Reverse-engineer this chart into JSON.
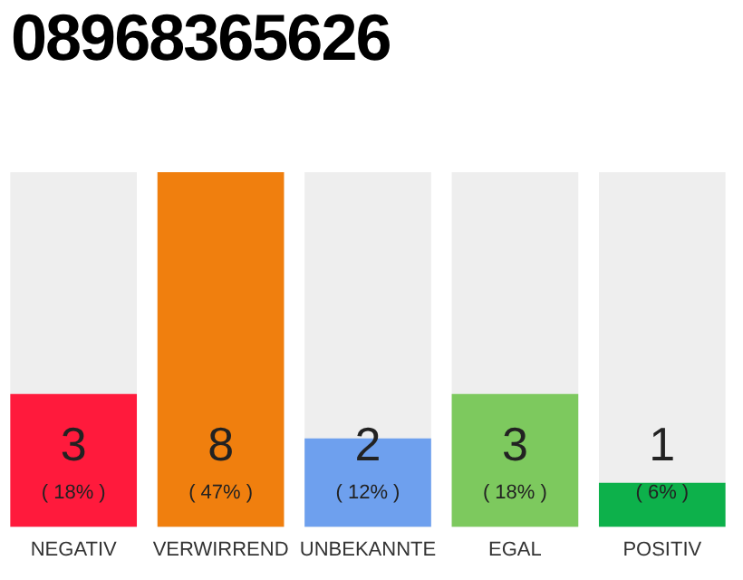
{
  "chart_data": {
    "type": "bar",
    "title": "08968365626",
    "categories": [
      "NEGATIV",
      "VERWIRREND",
      "UNBEKANNTE",
      "EGAL",
      "POSITIV"
    ],
    "values": [
      3,
      8,
      2,
      3,
      1
    ],
    "colors": [
      "#ff1a3c",
      "#f07f0e",
      "#6ea0ee",
      "#7dc95e",
      "#0db14b"
    ],
    "value_labels": [
      "3 ( 18% )",
      "8 ( 47% )",
      "2 ( 12% )",
      "3 ( 18% )",
      "1 ( 6% )"
    ],
    "tick_labels": "x",
    "grid": false,
    "legend": false
  }
}
